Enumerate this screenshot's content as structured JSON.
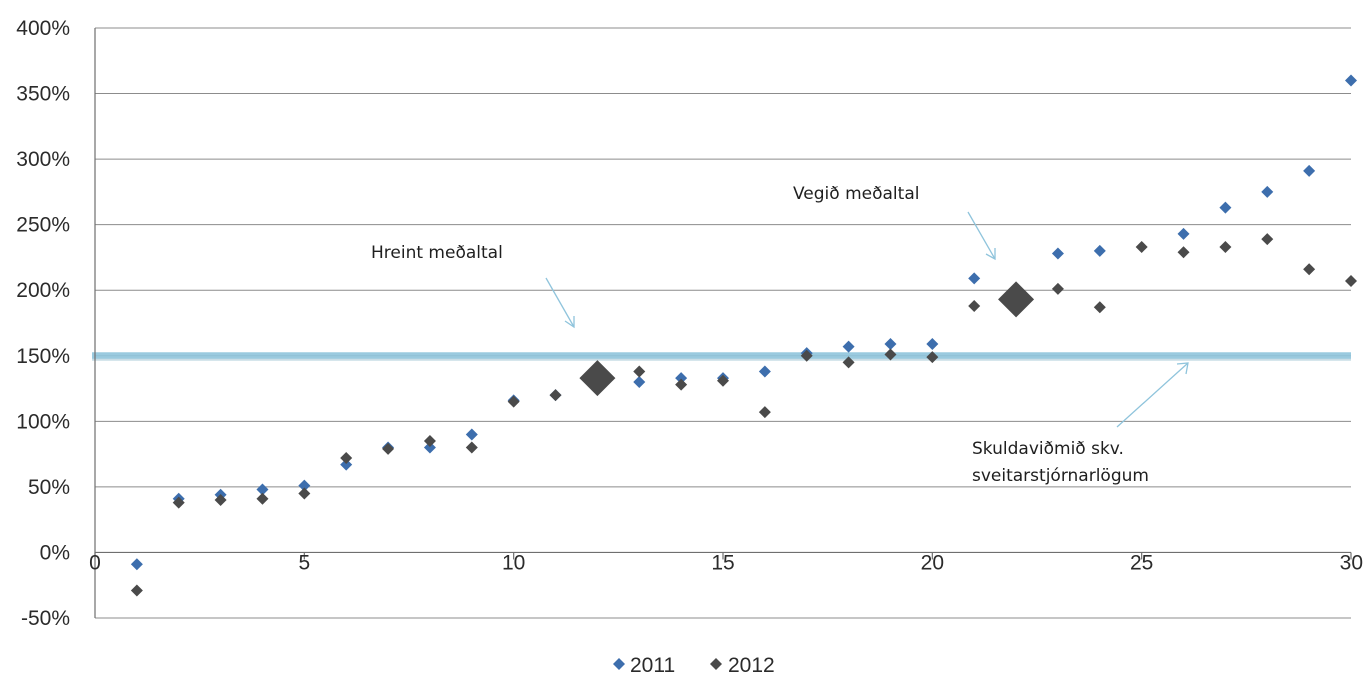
{
  "chart_data": {
    "type": "scatter",
    "title": "",
    "xlabel": "",
    "ylabel": "",
    "xlim": [
      0,
      30
    ],
    "ylim": [
      -50,
      400
    ],
    "x_ticks": [
      0,
      5,
      10,
      15,
      20,
      25,
      30
    ],
    "y_ticks": [
      -50,
      0,
      50,
      100,
      150,
      200,
      250,
      300,
      350,
      400
    ],
    "y_tick_suffix": "%",
    "grid": "horizontal",
    "legend_position": "bottom",
    "series": [
      {
        "name": "2011",
        "color": "#3d6ead",
        "points": [
          [
            1,
            -9
          ],
          [
            2,
            41
          ],
          [
            3,
            44
          ],
          [
            4,
            48
          ],
          [
            5,
            51
          ],
          [
            6,
            67
          ],
          [
            7,
            80
          ],
          [
            8,
            80
          ],
          [
            9,
            90
          ],
          [
            10,
            116
          ],
          [
            11,
            120
          ],
          [
            13,
            130
          ],
          [
            14,
            133
          ],
          [
            15,
            133
          ],
          [
            16,
            138
          ],
          [
            17,
            152
          ],
          [
            18,
            157
          ],
          [
            19,
            159
          ],
          [
            20,
            159
          ],
          [
            21,
            209
          ],
          [
            23,
            228
          ],
          [
            24,
            230
          ],
          [
            26,
            243
          ],
          [
            27,
            263
          ],
          [
            28,
            275
          ],
          [
            29,
            291
          ],
          [
            30,
            360
          ]
        ]
      },
      {
        "name": "2012",
        "color": "#4a4a4a",
        "points": [
          [
            1,
            -29
          ],
          [
            2,
            38
          ],
          [
            3,
            40
          ],
          [
            4,
            41
          ],
          [
            5,
            45
          ],
          [
            6,
            72
          ],
          [
            7,
            79
          ],
          [
            8,
            85
          ],
          [
            9,
            80
          ],
          [
            10,
            115
          ],
          [
            11,
            120
          ],
          [
            13,
            138
          ],
          [
            14,
            128
          ],
          [
            15,
            131
          ],
          [
            16,
            107
          ],
          [
            17,
            150
          ],
          [
            18,
            145
          ],
          [
            19,
            151
          ],
          [
            20,
            149
          ],
          [
            21,
            188
          ],
          [
            23,
            201
          ],
          [
            24,
            187
          ],
          [
            25,
            233
          ],
          [
            26,
            229
          ],
          [
            27,
            233
          ],
          [
            28,
            239
          ],
          [
            29,
            216
          ],
          [
            30,
            207
          ]
        ]
      }
    ],
    "averages": [
      {
        "label": "Hreint meðaltal",
        "x": 12,
        "y": 133,
        "color": "#4a4a4a"
      },
      {
        "label": "Vegið meðaltal",
        "x": 22,
        "y": 193,
        "color": "#4a4a4a"
      }
    ],
    "reference_line": {
      "y": 150,
      "color": "#8fc4dc",
      "label_lines": [
        "Skuldaviðmið  skv.",
        "sveitarstjórnarlögum"
      ]
    }
  },
  "annotations": {
    "hreint": "Hreint meðaltal",
    "vegid": "Vegið meðaltal",
    "skuld_line1": "Skuldaviðmið  skv.",
    "skuld_line2": "sveitarstjórnarlögum"
  },
  "legend": {
    "item_2011": "2011",
    "item_2012": "2012",
    "color_2011": "#3d6ead",
    "color_2012": "#4a4a4a"
  }
}
